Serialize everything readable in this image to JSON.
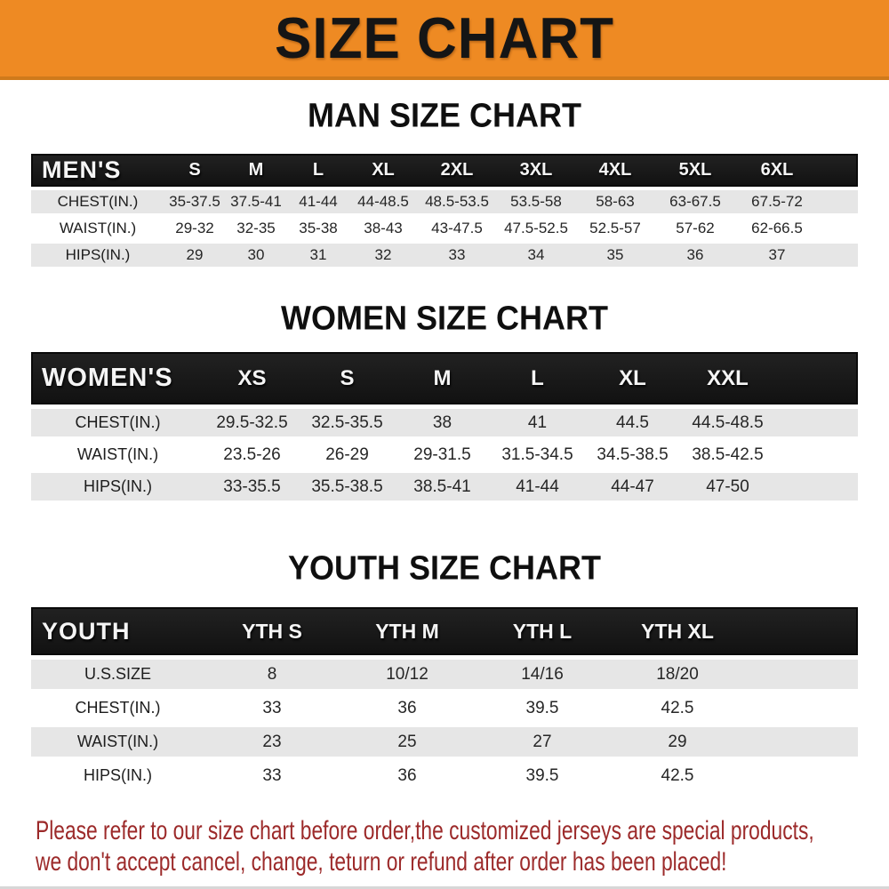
{
  "banner": {
    "title": "SIZE CHART",
    "bg_color": "#ee8a23",
    "text_color": "#151515"
  },
  "sections": [
    {
      "heading": "MAN SIZE CHART",
      "table": {
        "label": "MEN'S",
        "columns": [
          "S",
          "M",
          "L",
          "XL",
          "2XL",
          "3XL",
          "4XL",
          "5XL",
          "6XL"
        ],
        "rows": [
          {
            "label": "CHEST(IN.)",
            "values": [
              "35-37.5",
              "37.5-41",
              "41-44",
              "44-48.5",
              "48.5-53.5",
              "53.5-58",
              "58-63",
              "63-67.5",
              "67.5-72"
            ]
          },
          {
            "label": "WAIST(IN.)",
            "values": [
              "29-32",
              "32-35",
              "35-38",
              "38-43",
              "43-47.5",
              "47.5-52.5",
              "52.5-57",
              "57-62",
              "62-66.5"
            ]
          },
          {
            "label": "HIPS(IN.)",
            "values": [
              "29",
              "30",
              "31",
              "32",
              "33",
              "34",
              "35",
              "36",
              "37"
            ]
          }
        ]
      }
    },
    {
      "heading": "WOMEN SIZE CHART",
      "table": {
        "label": "WOMEN'S",
        "columns": [
          "XS",
          "S",
          "M",
          "L",
          "XL",
          "XXL"
        ],
        "rows": [
          {
            "label": "CHEST(IN.)",
            "values": [
              "29.5-32.5",
              "32.5-35.5",
              "38",
              "41",
              "44.5",
              "44.5-48.5"
            ]
          },
          {
            "label": "WAIST(IN.)",
            "values": [
              "23.5-26",
              "26-29",
              "29-31.5",
              "31.5-34.5",
              "34.5-38.5",
              "38.5-42.5"
            ]
          },
          {
            "label": "HIPS(IN.)",
            "values": [
              "33-35.5",
              "35.5-38.5",
              "38.5-41",
              "41-44",
              "44-47",
              "47-50"
            ]
          }
        ]
      }
    },
    {
      "heading": "YOUTH SIZE CHART",
      "table": {
        "label": "YOUTH",
        "columns": [
          "YTH S",
          "YTH M",
          "YTH L",
          "YTH XL"
        ],
        "rows": [
          {
            "label": "U.S.SIZE",
            "values": [
              "8",
              "10/12",
              "14/16",
              "18/20"
            ]
          },
          {
            "label": "CHEST(IN.)",
            "values": [
              "33",
              "36",
              "39.5",
              "42.5"
            ]
          },
          {
            "label": "WAIST(IN.)",
            "values": [
              "23",
              "25",
              "27",
              "29"
            ]
          },
          {
            "label": "HIPS(IN.)",
            "values": [
              "33",
              "36",
              "39.5",
              "42.5"
            ]
          }
        ]
      }
    }
  ],
  "footer": {
    "lines": [
      "Please refer to our size chart before order,the customized jerseys are special products,",
      "we don't accept cancel, change, teturn or refund after order has been placed!"
    ],
    "text_color": "#9c2a2a"
  }
}
